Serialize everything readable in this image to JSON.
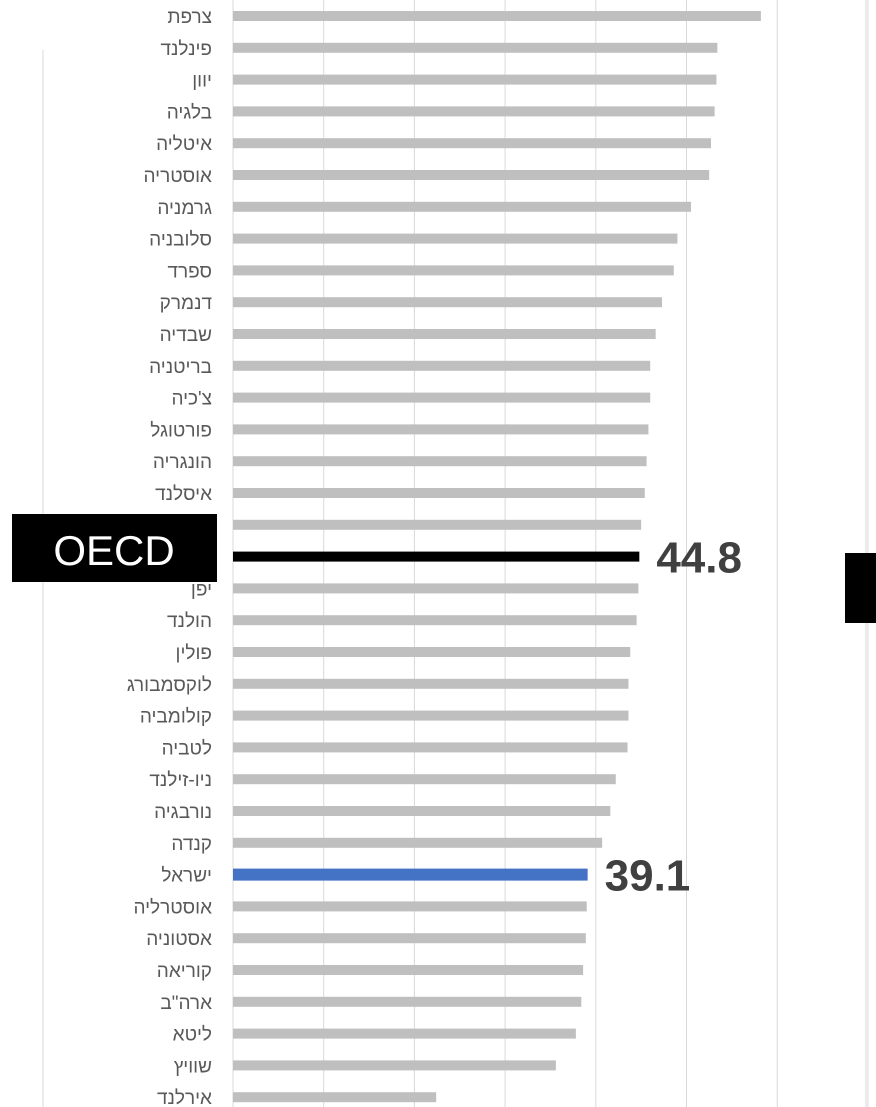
{
  "chart_data": {
    "type": "bar",
    "orientation": "horizontal",
    "categories": [
      "צרפת",
      "פינלנד",
      "יוון",
      "בלגיה",
      "איטליה",
      "אוסטריה",
      "גרמניה",
      "סלובניה",
      "ספרד",
      "דנמרק",
      "שבדיה",
      "בריטניה",
      "צ'כיה",
      "פורטוגל",
      "הונגריה",
      "איסלנד",
      "",
      "OECD",
      "יפן",
      "הולנד",
      "פולין",
      "לוקסמבורג",
      "קולומביה",
      "לטביה",
      "ניו-זילנד",
      "נורבגיה",
      "קנדה",
      "ישראל",
      "אוסטרליה",
      "אסטוניה",
      "קוריאה",
      "ארה\"ב",
      "ליטא",
      "שוויץ",
      "אירלנד"
    ],
    "values": [
      58.2,
      53.4,
      53.3,
      53.1,
      52.7,
      52.5,
      50.5,
      49.0,
      48.6,
      47.3,
      46.6,
      46.0,
      46.0,
      45.8,
      45.6,
      45.4,
      45.0,
      44.8,
      44.7,
      44.5,
      43.8,
      43.6,
      43.6,
      43.5,
      42.2,
      41.6,
      40.7,
      39.1,
      39.0,
      38.9,
      38.6,
      38.4,
      37.8,
      35.6,
      22.4
    ],
    "xlim": [
      0,
      70
    ],
    "grid": true,
    "highlight": {
      "ישראל": "#4472C4",
      "OECD": "#000000"
    },
    "bar_color": "#BFBFBF",
    "callouts": [
      {
        "category": "OECD",
        "label": "44.8"
      },
      {
        "category": "ישראל",
        "label": "39.1"
      }
    ]
  },
  "oecd_box": {
    "label": "OECD",
    "color": "#000000"
  },
  "colors": {
    "bar": "#BFBFBF",
    "israel": "#4472C4",
    "oecd": "#000000",
    "grid": "#D9D9D9",
    "label": "#595959",
    "callout": "#404040"
  }
}
